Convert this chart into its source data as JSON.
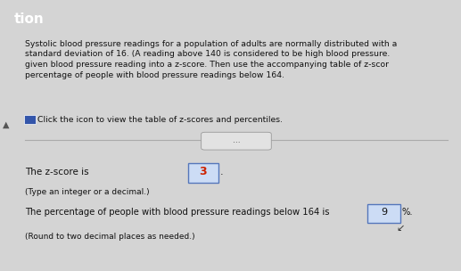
{
  "bg_color": "#d4d4d4",
  "panel_color": "#efefef",
  "header_color": "#4a7ab5",
  "header_text": "tion",
  "paragraph_text": "Systolic blood pressure readings for a population of adults are normally distributed with a\nstandard deviation of 16. (A reading above 140 is considered to be high blood pressure.\ngiven blood pressure reading into a z-score. Then use the accompanying table of z-scor\npercentage of people with blood pressure readings below 164.",
  "icon_line_text": "Click the icon to view the table of z-scores and percentiles.",
  "divider_button_text": "...",
  "zscore_label": "The z-score is ",
  "zscore_value": "3",
  "zscore_hint": "(Type an integer or a decimal.)",
  "percent_label": "The percentage of people with blood pressure readings below 164 is ",
  "percent_value": "9",
  "percent_suffix": "%.",
  "percent_hint": "(Round to two decimal places as needed.)",
  "text_color": "#111111",
  "input_box_color": "#ccdcf5",
  "input_box_border": "#5577bb",
  "icon_color": "#3355aa",
  "divider_color": "#aaaaaa",
  "btn_color": "#e2e2e2",
  "btn_border": "#999999"
}
